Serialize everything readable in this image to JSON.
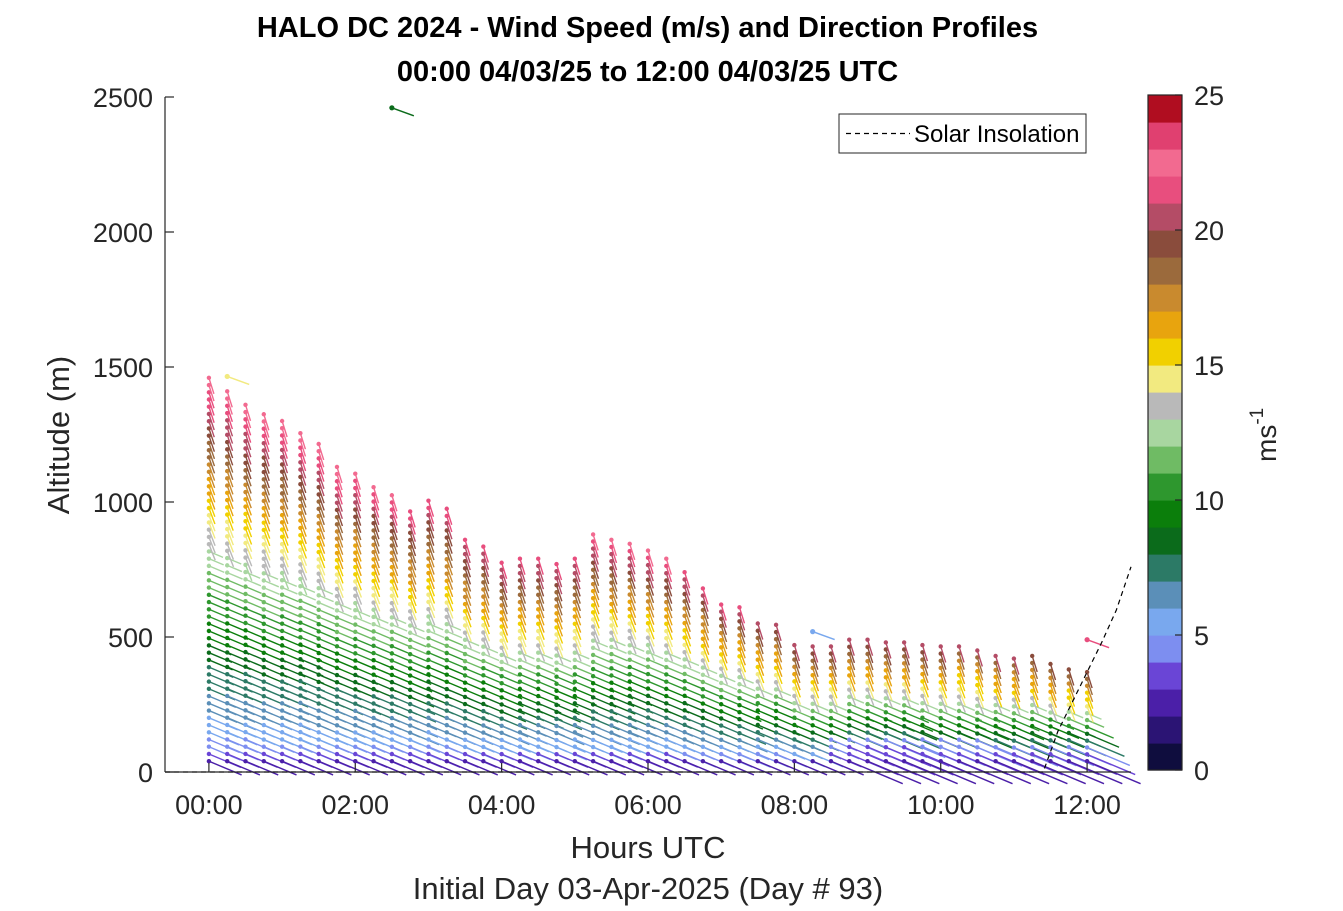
{
  "title": {
    "line1": "HALO DC 2024 - Wind Speed (m/s) and Direction Profiles",
    "line2": "00:00 04/03/25 to 12:00 04/03/25  UTC"
  },
  "chart_data": {
    "type": "scatter",
    "ylabel": "Altitude (m)",
    "xlabel": "Hours UTC",
    "subtitle": "Initial Day 03-Apr-2025 (Day # 93)",
    "xlim": [
      -0.6,
      12.6
    ],
    "ylim": [
      0,
      2500
    ],
    "x_ticks": [
      0,
      2,
      4,
      6,
      8,
      10,
      12
    ],
    "x_tick_labels": [
      "00:00",
      "02:00",
      "04:00",
      "06:00",
      "08:00",
      "10:00",
      "12:00"
    ],
    "y_ticks": [
      0,
      500,
      1000,
      1500,
      2000,
      2500
    ],
    "y_tick_labels": [
      "0",
      "500",
      "1000",
      "1500",
      "2000",
      "2500"
    ],
    "grid": false,
    "legend": {
      "placement": "top-right",
      "entries": [
        "Solar Insolation"
      ]
    },
    "colorbar": {
      "label": "ms",
      "label_exponent": "-1",
      "range": [
        0,
        25
      ],
      "ticks": [
        0,
        5,
        10,
        15,
        20,
        25
      ],
      "tick_labels": [
        "0",
        "5",
        "10",
        "15",
        "20",
        "25"
      ],
      "colors": [
        "#0f0d3e",
        "#2b1474",
        "#4b1fa8",
        "#6a45d6",
        "#7d8ef0",
        "#79a8ee",
        "#5b8fb8",
        "#2c7a66",
        "#0b6b1b",
        "#0b7e0b",
        "#2e972e",
        "#6fbb64",
        "#a8d6a0",
        "#b9b9b9",
        "#f2ea80",
        "#f1d000",
        "#e8a40e",
        "#c98a2e",
        "#9b6a3c",
        "#8a4c3c",
        "#b44c66",
        "#e84e7e",
        "#f26a90",
        "#e04070",
        "#b00d20"
      ]
    },
    "profile_times": [
      0,
      0.25,
      0.5,
      0.75,
      1,
      1.25,
      1.5,
      1.75,
      2,
      2.25,
      2.5,
      2.75,
      3,
      3.25,
      3.5,
      3.75,
      4,
      4.25,
      4.5,
      4.75,
      5,
      5.25,
      5.5,
      5.75,
      6,
      6.25,
      6.5,
      6.75,
      7,
      7.25,
      7.5,
      7.75,
      8,
      8.25,
      8.5,
      8.75,
      9,
      9.25,
      9.5,
      9.75,
      10,
      10.25,
      10.5,
      10.75,
      11,
      11.25,
      11.5,
      11.75,
      12
    ],
    "profile_tops": [
      1460,
      1410,
      1360,
      1325,
      1300,
      1255,
      1215,
      1130,
      1105,
      1055,
      1025,
      965,
      1005,
      975,
      860,
      835,
      775,
      790,
      790,
      770,
      790,
      880,
      860,
      845,
      820,
      790,
      740,
      680,
      620,
      610,
      550,
      545,
      470,
      465,
      465,
      490,
      490,
      480,
      480,
      470,
      465,
      465,
      450,
      430,
      420,
      430,
      400,
      380,
      370
    ],
    "profile_speed_shift": [
      1,
      1,
      1,
      1,
      1,
      1,
      1,
      1,
      0.95,
      0.95,
      0.95,
      0.9,
      0.9,
      0.9,
      0.9,
      0.9,
      0.9,
      0.9,
      0.9,
      0.9,
      0.9,
      0.95,
      0.95,
      0.95,
      0.95,
      0.95,
      0.9,
      0.85,
      0.85,
      0.85,
      0.8,
      0.8,
      0.8,
      0.8,
      0.8,
      0.8,
      0.8,
      0.8,
      0.8,
      0.8,
      0.8,
      0.75,
      0.75,
      0.75,
      0.75,
      0.7,
      0.7,
      0.7,
      0.7
    ],
    "isolated_barbs": [
      {
        "time": 2.5,
        "altitude": 2460,
        "speed": 8
      },
      {
        "time": 8.25,
        "altitude": 520,
        "speed": 5
      },
      {
        "time": 0.25,
        "altitude": 1465,
        "speed": 14
      },
      {
        "time": 12.0,
        "altitude": 490,
        "speed": 21
      }
    ],
    "solar_insolation": {
      "name": "Solar Insolation",
      "x": [
        -0.6,
        11.4,
        11.6,
        11.8,
        12.0,
        12.2,
        12.4,
        12.6
      ],
      "y": [
        0,
        0,
        150,
        260,
        370,
        480,
        600,
        760
      ]
    }
  }
}
